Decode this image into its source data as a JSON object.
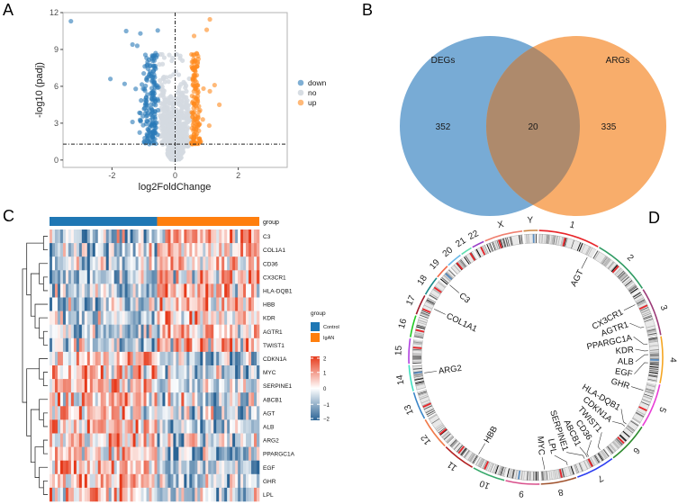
{
  "panels": {
    "a": "A",
    "b": "B",
    "c": "C",
    "d": "D"
  },
  "colors": {
    "down": "#2a7ab8",
    "no": "#d3d9e0",
    "up": "#ff8a1e",
    "control": "#1f77b4",
    "igan": "#ff7f0e",
    "heat_low": "#2b6495",
    "heat_mid": "#ffffff",
    "heat_high": "#e6391a",
    "venn_left": "#78abd5",
    "venn_right": "#f8ad6b",
    "venn_overlap": "#ae8a6c"
  },
  "chart_data": [
    {
      "type": "scatter",
      "id": "volcano",
      "xlabel": "log2FoldChange",
      "ylabel": "-log10 (padj)",
      "xlim": [
        -3.55,
        3.55
      ],
      "ylim": [
        -0.6,
        12
      ],
      "xticks": [
        -2,
        0,
        2
      ],
      "yticks": [
        0,
        3,
        6,
        9,
        12
      ],
      "xtick_labels": [
        "-2",
        "0",
        "2"
      ],
      "ytick_labels": [
        "0",
        "3",
        "6",
        "9",
        "12"
      ],
      "grid": false,
      "hline": 1.3,
      "vline": 0,
      "legend": {
        "placement": "right",
        "entries": [
          "down",
          "no",
          "up"
        ]
      },
      "notable_points": [
        {
          "x": -3.3,
          "y": 11.3,
          "group": "down"
        },
        {
          "x": -1.55,
          "y": 10.5,
          "group": "down"
        },
        {
          "x": -1.1,
          "y": 10.3,
          "group": "down"
        },
        {
          "x": -0.55,
          "y": 10.55,
          "group": "down"
        },
        {
          "x": -1.35,
          "y": 9.4,
          "group": "down"
        },
        {
          "x": -1.2,
          "y": 9.3,
          "group": "down"
        },
        {
          "x": -2.05,
          "y": 6.6,
          "group": "down"
        },
        {
          "x": -1.6,
          "y": 6.2,
          "group": "down"
        },
        {
          "x": -1.35,
          "y": 3.1,
          "group": "down"
        },
        {
          "x": 1.1,
          "y": 11.45,
          "group": "up"
        },
        {
          "x": 1.0,
          "y": 10.6,
          "group": "up"
        },
        {
          "x": 0.6,
          "y": 10.1,
          "group": "up"
        },
        {
          "x": 1.25,
          "y": 6.1,
          "group": "up"
        },
        {
          "x": 1.4,
          "y": 4.5,
          "group": "up"
        },
        {
          "x": 1.08,
          "y": 2.8,
          "group": "up"
        },
        {
          "x": 1.1,
          "y": 5.6,
          "group": "up"
        }
      ]
    },
    {
      "type": "venn",
      "id": "venn",
      "sets": [
        {
          "name": "DEGs",
          "only": 352
        },
        {
          "name": "ARGs",
          "only": 335
        }
      ],
      "intersection": 20,
      "labels": {
        "left": "DEGs",
        "right": "ARGs",
        "left_only": "352",
        "both": "20",
        "right_only": "335"
      }
    },
    {
      "type": "heatmap",
      "id": "heatmap",
      "annotation_label": "group",
      "groups": [
        {
          "name": "Control",
          "n": 40
        },
        {
          "name": "IgAN",
          "n": 38
        }
      ],
      "rows": [
        "C3",
        "COL1A1",
        "CD36",
        "CX3CR1",
        "HLA-DQB1",
        "HBB",
        "KDR",
        "AGTR1",
        "TWIST1",
        "CDKN1A",
        "MYC",
        "SERPINE1",
        "ABCB1",
        "AGT",
        "ALB",
        "ARG2",
        "PPARGC1A",
        "EGF",
        "GHR",
        "LPL"
      ],
      "row_trend": [
        1,
        1,
        1,
        1,
        1,
        1,
        1,
        1,
        1,
        -1,
        -1,
        -1,
        -1,
        -1,
        -1,
        -1,
        -1,
        -1,
        -1,
        -1
      ],
      "dendrogram": [
        [
          [
            0,
            1
          ],
          [
            [
              2,
              [
                3,
                4
              ]
            ],
            [
              5,
              [
                6,
                [
                  7,
                  8
                ]
              ]
            ]
          ]
        ],
        [
          [
            9,
            [
              10,
              11
            ]
          ],
          [
            [
              12,
              [
                13,
                14
              ]
            ],
            [
              [
                15,
                16
              ],
              [
                17,
                [
                  18,
                  19
                ]
              ]
            ]
          ]
        ]
      ],
      "legend_title": "group",
      "legend_entries": [
        "Control",
        "IgAN"
      ],
      "colorbar": {
        "min": -2,
        "max": 2,
        "ticks": [
          2,
          1,
          0,
          -1,
          -2
        ],
        "tick_labels": [
          "2",
          "1",
          "0",
          "−1",
          "−2"
        ]
      }
    },
    {
      "type": "circos",
      "id": "circos",
      "chromosomes": [
        {
          "name": "1",
          "len": 249,
          "color": "#e8262b"
        },
        {
          "name": "2",
          "len": 242,
          "color": "#2e9a62"
        },
        {
          "name": "3",
          "len": 198,
          "color": "#9c3b78"
        },
        {
          "name": "4",
          "len": 190,
          "color": "#f5a623"
        },
        {
          "name": "5",
          "len": 181,
          "color": "#e83ed6"
        },
        {
          "name": "6",
          "len": 171,
          "color": "#2c8a2c"
        },
        {
          "name": "7",
          "len": 159,
          "color": "#2b3cf0"
        },
        {
          "name": "8",
          "len": 145,
          "color": "#a0522d"
        },
        {
          "name": "9",
          "len": 138,
          "color": "#d9508c"
        },
        {
          "name": "10",
          "len": 134,
          "color": "#36a86a"
        },
        {
          "name": "11",
          "len": 135,
          "color": "#b22222"
        },
        {
          "name": "12",
          "len": 133,
          "color": "#f07a4a"
        },
        {
          "name": "13",
          "len": 114,
          "color": "#3a85c8"
        },
        {
          "name": "14",
          "len": 107,
          "color": "#40e0c0"
        },
        {
          "name": "15",
          "len": 102,
          "color": "#b040e0"
        },
        {
          "name": "16",
          "len": 90,
          "color": "#22c822"
        },
        {
          "name": "17",
          "len": 83,
          "color": "#a01a2a"
        },
        {
          "name": "18",
          "len": 80,
          "color": "#1a8a8a"
        },
        {
          "name": "19",
          "len": 59,
          "color": "#f06a4a"
        },
        {
          "name": "20",
          "len": 64,
          "color": "#6ab8e8"
        },
        {
          "name": "21",
          "len": 47,
          "color": "#60e0b0"
        },
        {
          "name": "22",
          "len": 51,
          "color": "#9a40c8"
        },
        {
          "name": "X",
          "len": 156,
          "color": "#f08070"
        },
        {
          "name": "Y",
          "len": 57,
          "color": "#cd853f"
        }
      ],
      "genes": [
        {
          "name": "AGT",
          "chr": "1",
          "pos": 230
        },
        {
          "name": "CX3CR1",
          "chr": "3",
          "pos": 39
        },
        {
          "name": "AGTR1",
          "chr": "3",
          "pos": 148
        },
        {
          "name": "PPARGC1A",
          "chr": "4",
          "pos": 24
        },
        {
          "name": "KDR",
          "chr": "4",
          "pos": 55
        },
        {
          "name": "ALB",
          "chr": "4",
          "pos": 73
        },
        {
          "name": "EGF",
          "chr": "4",
          "pos": 110
        },
        {
          "name": "GHR",
          "chr": "5",
          "pos": 42
        },
        {
          "name": "HLA-DQB1",
          "chr": "6",
          "pos": 28
        },
        {
          "name": "CDKN1A",
          "chr": "6",
          "pos": 40
        },
        {
          "name": "TWIST1",
          "chr": "7",
          "pos": 19
        },
        {
          "name": "CD36",
          "chr": "7",
          "pos": 80
        },
        {
          "name": "ABCB1",
          "chr": "7",
          "pos": 87
        },
        {
          "name": "SERPINE1",
          "chr": "7",
          "pos": 101
        },
        {
          "name": "LPL",
          "chr": "8",
          "pos": 20
        },
        {
          "name": "MYC",
          "chr": "8",
          "pos": 127
        },
        {
          "name": "HBB",
          "chr": "11",
          "pos": 5
        },
        {
          "name": "ARG2",
          "chr": "14",
          "pos": 67
        },
        {
          "name": "COL1A1",
          "chr": "17",
          "pos": 50
        },
        {
          "name": "C3",
          "chr": "19",
          "pos": 7
        }
      ]
    }
  ]
}
